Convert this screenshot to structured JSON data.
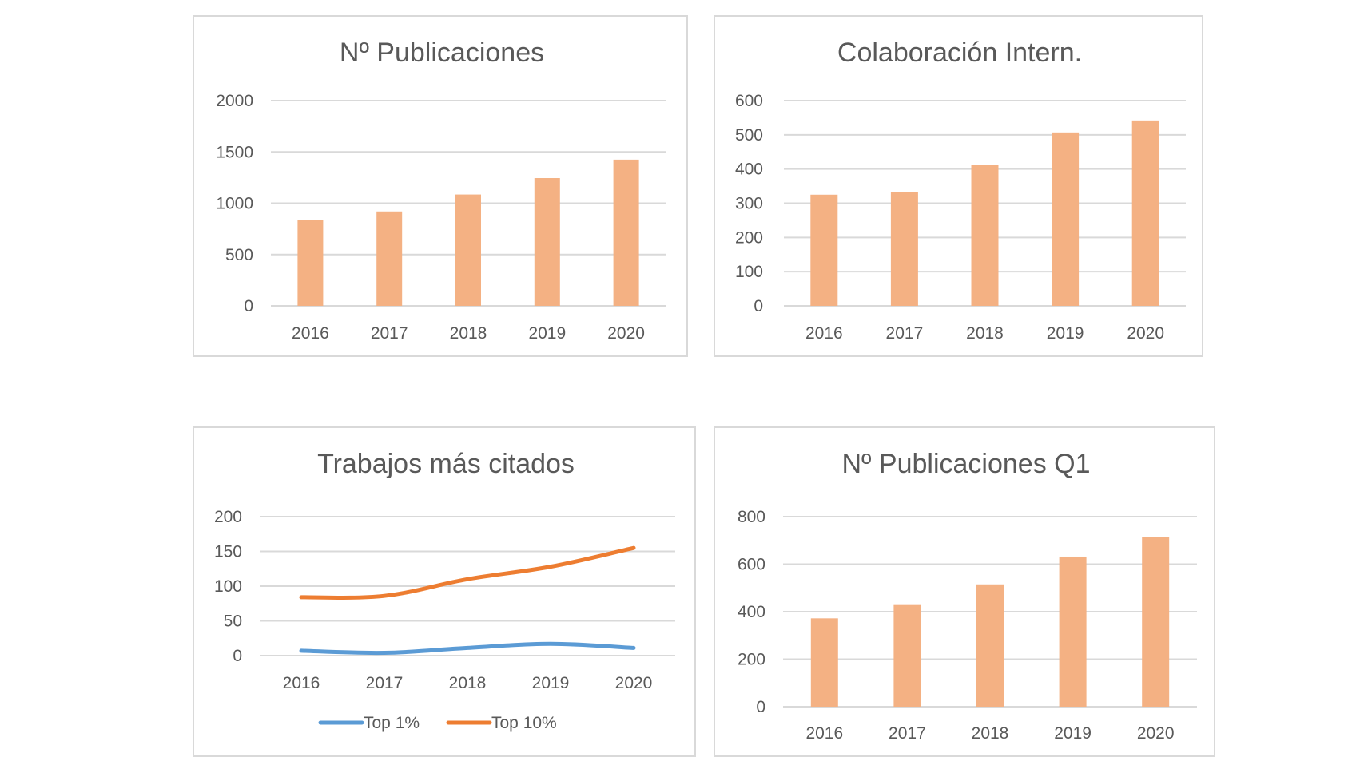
{
  "chart_data": [
    {
      "type": "bar",
      "title": "Nº Publicaciones",
      "categories": [
        "2016",
        "2017",
        "2018",
        "2019",
        "2020"
      ],
      "values": [
        840,
        920,
        1085,
        1245,
        1425
      ],
      "ylim": [
        0,
        2000
      ],
      "yticks": [
        "0",
        "500",
        "1000",
        "1500",
        "2000"
      ],
      "grid": true,
      "color": "#F4B183"
    },
    {
      "type": "bar",
      "title": "Colaboración Intern.",
      "categories": [
        "2016",
        "2017",
        "2018",
        "2019",
        "2020"
      ],
      "values": [
        325,
        333,
        413,
        507,
        542
      ],
      "ylim": [
        0,
        600
      ],
      "yticks": [
        "0",
        "100",
        "200",
        "300",
        "400",
        "500",
        "600"
      ],
      "grid": true,
      "color": "#F4B183"
    },
    {
      "type": "line",
      "title": "Trabajos más citados",
      "categories": [
        "2016",
        "2017",
        "2018",
        "2019",
        "2020"
      ],
      "series": [
        {
          "name": "Top 1%",
          "values": [
            7,
            4,
            11,
            17,
            11
          ],
          "color": "#5B9BD5"
        },
        {
          "name": "Top 10%",
          "values": [
            84,
            86,
            110,
            128,
            155
          ],
          "color": "#ED7D31"
        }
      ],
      "ylim": [
        0,
        200
      ],
      "yticks": [
        "0",
        "50",
        "100",
        "150",
        "200"
      ],
      "grid": true,
      "legend": "bottom"
    },
    {
      "type": "bar",
      "title": "Nº Publicaciones Q1",
      "categories": [
        "2016",
        "2017",
        "2018",
        "2019",
        "2020"
      ],
      "values": [
        372,
        428,
        515,
        632,
        713
      ],
      "ylim": [
        0,
        800
      ],
      "yticks": [
        "0",
        "200",
        "400",
        "600",
        "800"
      ],
      "grid": true,
      "color": "#F4B183"
    }
  ]
}
